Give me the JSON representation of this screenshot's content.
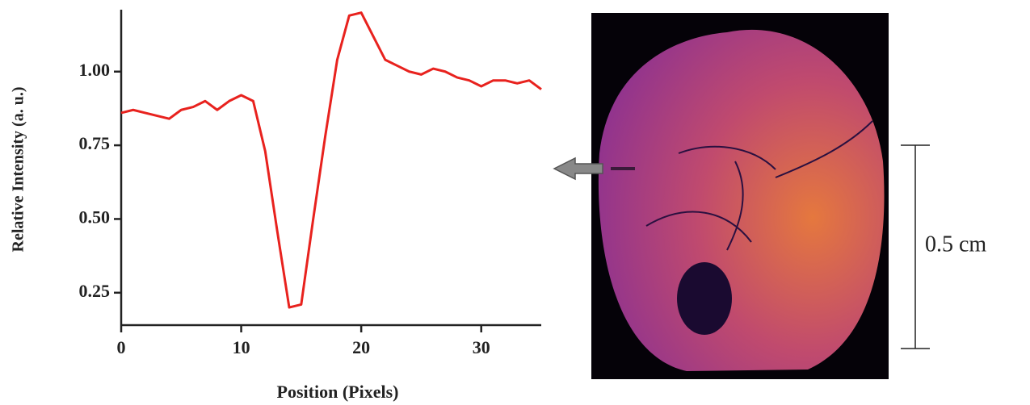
{
  "chart_data": {
    "type": "line",
    "x_label": "Position (Pixels)",
    "y_label": "Relative Intensity (a. u.)",
    "x": [
      0,
      1,
      2,
      3,
      4,
      5,
      6,
      7,
      8,
      9,
      10,
      11,
      12,
      13,
      14,
      15,
      16,
      17,
      18,
      19,
      20,
      21,
      22,
      23,
      24,
      25,
      26,
      27,
      28,
      29,
      30,
      31,
      32,
      33,
      34,
      35
    ],
    "series": [
      {
        "color": "#e8221e",
        "values": [
          0.86,
          0.87,
          0.86,
          0.85,
          0.84,
          0.87,
          0.88,
          0.9,
          0.87,
          0.9,
          0.92,
          0.9,
          0.73,
          0.46,
          0.2,
          0.21,
          0.5,
          0.78,
          1.04,
          1.19,
          1.2,
          1.12,
          1.04,
          1.02,
          1.0,
          0.99,
          1.01,
          1.0,
          0.98,
          0.97,
          0.95,
          0.97,
          0.97,
          0.96,
          0.97,
          0.94
        ]
      }
    ],
    "xlim": [
      0,
      35
    ],
    "xticks": [
      0,
      10,
      20,
      30
    ],
    "ylim": [
      0.14,
      1.21
    ],
    "yticks": [
      {
        "value": 0.25,
        "label": "0.25"
      },
      {
        "value": 0.5,
        "label": "0.50"
      },
      {
        "value": 0.75,
        "label": "0.75"
      },
      {
        "value": 1.0,
        "label": "1.00"
      }
    ],
    "annotations": [
      "0.5 cm"
    ]
  }
}
